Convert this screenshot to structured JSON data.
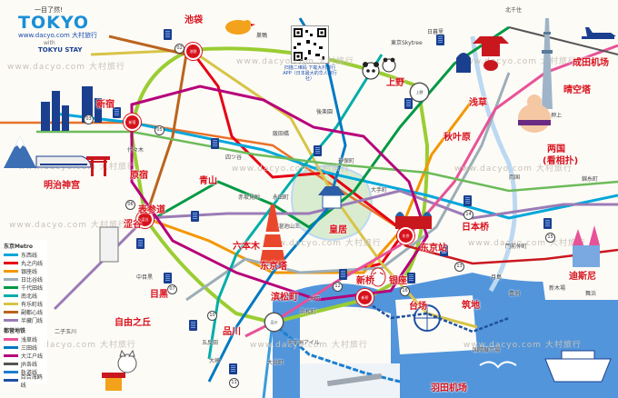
{
  "header": {
    "slogan": "一目了然!",
    "logo": "TOKYO",
    "site": "www.dacyo.com 大村旅行",
    "with_word": "with",
    "partner": "TOKYU STAY",
    "qr_caption": "扫描二维码 下载大村旅行APP（日本最大的华人旅行社）"
  },
  "watermark": "www.dacyo.com 大村旅行",
  "colors": {
    "yamanote": "#9acd32",
    "ginza": "#f39700",
    "marunouchi": "#e60012",
    "hibiya": "#9caeb7",
    "tozai": "#00a7db",
    "chiyoda": "#009944",
    "yurakucho": "#d7c447",
    "hanzomon": "#9b7cb6",
    "namboku": "#00ada9",
    "fukutoshin": "#bb641d",
    "asakusa": "#e85298",
    "mita": "#0079c2",
    "shinjuku_line": "#6cbb5a",
    "oedo": "#b6007a",
    "jr": "#555555",
    "monorail": "#1b7fd0",
    "yurikamome": "#1e50a2",
    "sea": "#3f8ad8"
  },
  "legend": {
    "metro_title": "东京Metro",
    "metro_lines": [
      {
        "name": "东西线",
        "color": "#00a7db"
      },
      {
        "name": "丸之内线",
        "color": "#e60012"
      },
      {
        "name": "银座线",
        "color": "#f39700"
      },
      {
        "name": "日比谷线",
        "color": "#9caeb7"
      },
      {
        "name": "千代田线",
        "color": "#009944"
      },
      {
        "name": "南北线",
        "color": "#00ada9"
      },
      {
        "name": "有乐町线",
        "color": "#d7c447"
      },
      {
        "name": "副都心线",
        "color": "#bb641d"
      },
      {
        "name": "半藏门线",
        "color": "#9b7cb6"
      }
    ],
    "toei_title": "都营地铁",
    "toei_lines": [
      {
        "name": "浅草线",
        "color": "#e85298"
      },
      {
        "name": "三田线",
        "color": "#0079c2"
      },
      {
        "name": "大江户线",
        "color": "#b6007a"
      }
    ],
    "jr_title": "",
    "jr_lines": [
      {
        "name": "JR各线",
        "color": "#555555"
      },
      {
        "name": "轨道线",
        "color": "#1b7fd0"
      },
      {
        "name": "百合海鸥线",
        "color": "#1e50a2"
      }
    ]
  },
  "places": [
    {
      "name": "池袋",
      "id": "ikebukuro"
    },
    {
      "name": "上野",
      "id": "ueno"
    },
    {
      "name": "浅草",
      "id": "asakusa"
    },
    {
      "name": "晴空塔",
      "id": "skytree"
    },
    {
      "name": "成田机场",
      "id": "narita"
    },
    {
      "name": "秋叶原",
      "id": "akihabara"
    },
    {
      "name": "两国",
      "id": "ryogoku1"
    },
    {
      "name": "(看相扑)",
      "id": "ryogoku2"
    },
    {
      "name": "新宿",
      "id": "shinjuku"
    },
    {
      "name": "明治神宫",
      "id": "meiji"
    },
    {
      "name": "原宿",
      "id": "harajuku"
    },
    {
      "name": "表参道",
      "id": "omotesando"
    },
    {
      "name": "涩谷",
      "id": "shibuya"
    },
    {
      "name": "青山",
      "id": "aoyama"
    },
    {
      "name": "六本木",
      "id": "roppongi"
    },
    {
      "name": "东京塔",
      "id": "tokyotower"
    },
    {
      "name": "皇居",
      "id": "kokyo"
    },
    {
      "name": "东京站",
      "id": "tokyost"
    },
    {
      "name": "日本桥",
      "id": "nihonbashi"
    },
    {
      "name": "银座",
      "id": "ginza"
    },
    {
      "name": "新桥",
      "id": "shimbashi"
    },
    {
      "name": "滨松町",
      "id": "hamamatsucho"
    },
    {
      "name": "筑地",
      "id": "tsukiji"
    },
    {
      "name": "台场",
      "id": "odaiba"
    },
    {
      "name": "迪斯尼",
      "id": "disney"
    },
    {
      "name": "目黑",
      "id": "meguro"
    },
    {
      "name": "自由之丘",
      "id": "jiyugaoka"
    },
    {
      "name": "品川",
      "id": "shinagawa"
    },
    {
      "name": "羽田机场",
      "id": "haneda"
    }
  ],
  "stations": [
    {
      "label": "池袋"
    },
    {
      "label": "新宿"
    },
    {
      "label": "涩谷"
    },
    {
      "label": "品川"
    },
    {
      "label": "东京"
    },
    {
      "label": "新桥"
    },
    {
      "label": "上野"
    }
  ],
  "small_labels": [
    "東京Skytree",
    "押上",
    "錦糸町",
    "門前仲町",
    "大手町",
    "飯田橋",
    "四ツ谷",
    "赤坂見附",
    "永田町",
    "溜池山王",
    "大門",
    "五反田",
    "大崎",
    "北千住",
    "日暮里",
    "両国",
    "月島",
    "豊洲",
    "新木場",
    "舞浜",
    "浜松町",
    "天王洲アイル",
    "国際展示場",
    "大井町",
    "二子玉川",
    "中目黒",
    "代々木",
    "神保町",
    "後楽園",
    "巣鴨"
  ]
}
